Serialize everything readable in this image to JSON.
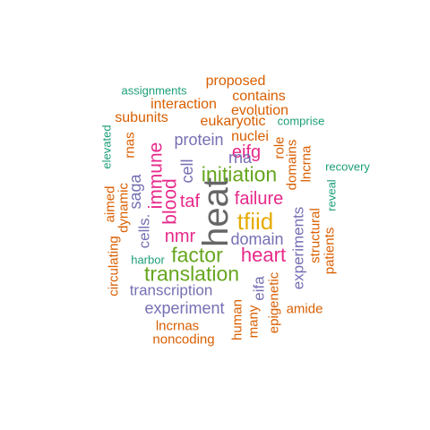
{
  "word_cloud": {
    "words": [
      {
        "text": "heat",
        "color": "#666666"
      },
      {
        "text": "tfiid",
        "color": "#E6AB02"
      },
      {
        "text": "translation",
        "color": "#66A61E"
      },
      {
        "text": "initiation",
        "color": "#66A61E"
      },
      {
        "text": "factor",
        "color": "#66A61E"
      },
      {
        "text": "heart",
        "color": "#E7298A"
      },
      {
        "text": "failure",
        "color": "#E7298A"
      },
      {
        "text": "immune",
        "color": "#E7298A"
      },
      {
        "text": "blood",
        "color": "#E7298A"
      },
      {
        "text": "taf",
        "color": "#E7298A"
      },
      {
        "text": "nmr",
        "color": "#E7298A"
      },
      {
        "text": "eifg",
        "color": "#E7298A"
      },
      {
        "text": "domain",
        "color": "#7570B3"
      },
      {
        "text": "protein",
        "color": "#7570B3"
      },
      {
        "text": "transcription",
        "color": "#7570B3"
      },
      {
        "text": "experiment",
        "color": "#7570B3"
      },
      {
        "text": "experiments",
        "color": "#7570B3"
      },
      {
        "text": "saga",
        "color": "#7570B3"
      },
      {
        "text": "cells.",
        "color": "#7570B3"
      },
      {
        "text": "rna",
        "color": "#7570B3"
      },
      {
        "text": "cell",
        "color": "#7570B3"
      },
      {
        "text": "eifa",
        "color": "#7570B3"
      },
      {
        "text": "proposed",
        "color": "#D95F02"
      },
      {
        "text": "contains",
        "color": "#D95F02"
      },
      {
        "text": "interaction",
        "color": "#D95F02"
      },
      {
        "text": "evolution",
        "color": "#D95F02"
      },
      {
        "text": "subunits",
        "color": "#D95F02"
      },
      {
        "text": "eukaryotic",
        "color": "#D95F02"
      },
      {
        "text": "nuclei",
        "color": "#D95F02"
      },
      {
        "text": "rnas",
        "color": "#D95F02"
      },
      {
        "text": "role",
        "color": "#D95F02"
      },
      {
        "text": "domains",
        "color": "#D95F02"
      },
      {
        "text": "lncrna",
        "color": "#D95F02"
      },
      {
        "text": "aimed",
        "color": "#D95F02"
      },
      {
        "text": "dynamic",
        "color": "#D95F02"
      },
      {
        "text": "circulating",
        "color": "#D95F02"
      },
      {
        "text": "structural",
        "color": "#D95F02"
      },
      {
        "text": "patients",
        "color": "#D95F02"
      },
      {
        "text": "amide",
        "color": "#D95F02"
      },
      {
        "text": "lncrnas",
        "color": "#D95F02"
      },
      {
        "text": "noncoding",
        "color": "#D95F02"
      },
      {
        "text": "human",
        "color": "#D95F02"
      },
      {
        "text": "many",
        "color": "#D95F02"
      },
      {
        "text": "epigenetic",
        "color": "#D95F02"
      },
      {
        "text": "assignments",
        "color": "#1B9E77"
      },
      {
        "text": "comprise",
        "color": "#1B9E77"
      },
      {
        "text": "recovery",
        "color": "#1B9E77"
      },
      {
        "text": "elevated",
        "color": "#1B9E77"
      },
      {
        "text": "reveal",
        "color": "#1B9E77"
      },
      {
        "text": "harbor",
        "color": "#1B9E77"
      }
    ]
  }
}
